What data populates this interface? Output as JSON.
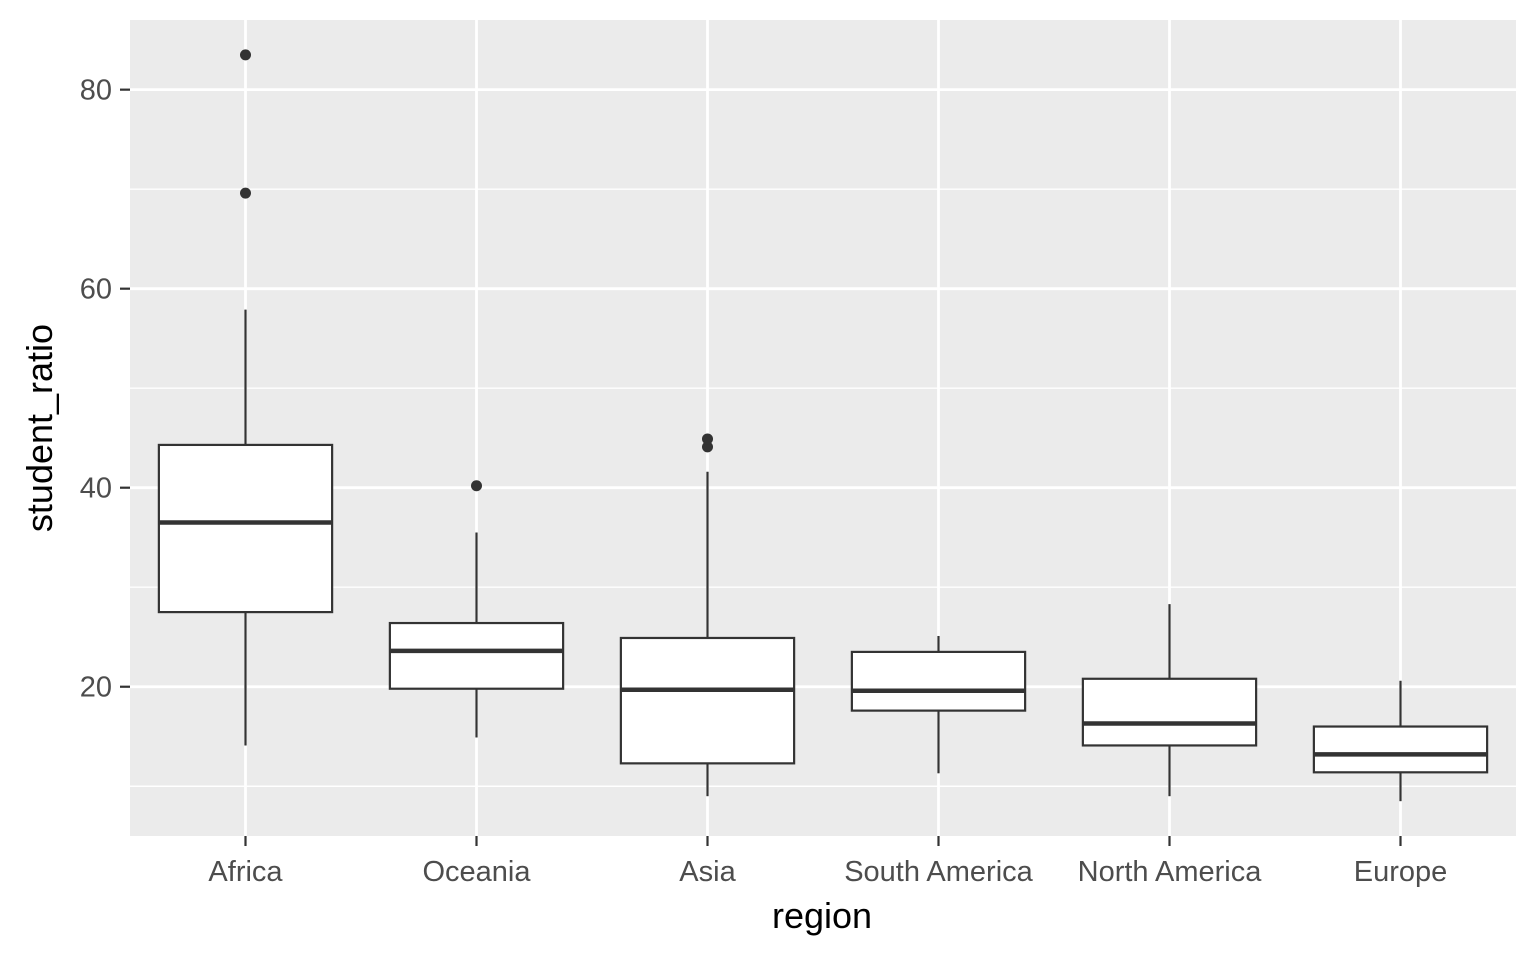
{
  "chart_data": {
    "type": "box",
    "xlabel": "region",
    "ylabel": "student_ratio",
    "categories": [
      "Africa",
      "Oceania",
      "Asia",
      "South America",
      "North America",
      "Europe"
    ],
    "ylim": [
      5,
      87
    ],
    "y_ticks": [
      20,
      40,
      60,
      80
    ],
    "y_minor_ticks": [
      10,
      30,
      50,
      70
    ],
    "grid": true,
    "boxes": [
      {
        "category": "Africa",
        "min": 14.1,
        "q1": 27.5,
        "median": 36.5,
        "q3": 44.3,
        "max": 57.9,
        "outliers": [
          69.6,
          83.5
        ]
      },
      {
        "category": "Oceania",
        "min": 14.9,
        "q1": 19.8,
        "median": 23.6,
        "q3": 26.4,
        "max": 35.5,
        "outliers": [
          40.2
        ]
      },
      {
        "category": "Asia",
        "min": 9.0,
        "q1": 12.3,
        "median": 19.7,
        "q3": 24.9,
        "max": 41.6,
        "outliers": [
          44.1,
          44.9
        ]
      },
      {
        "category": "South America",
        "min": 11.3,
        "q1": 17.6,
        "median": 19.6,
        "q3": 23.5,
        "max": 25.1,
        "outliers": []
      },
      {
        "category": "North America",
        "min": 9.0,
        "q1": 14.1,
        "median": 16.3,
        "q3": 20.8,
        "max": 28.3,
        "outliers": []
      },
      {
        "category": "Europe",
        "min": 8.5,
        "q1": 11.4,
        "median": 13.2,
        "q3": 16.0,
        "max": 20.6,
        "outliers": []
      }
    ],
    "colors": {
      "panel": "#ebebeb",
      "grid": "#ffffff",
      "box_fill": "#ffffff",
      "box_stroke": "#333333",
      "tick": "#333333",
      "tick_label": "#4d4d4d"
    }
  }
}
